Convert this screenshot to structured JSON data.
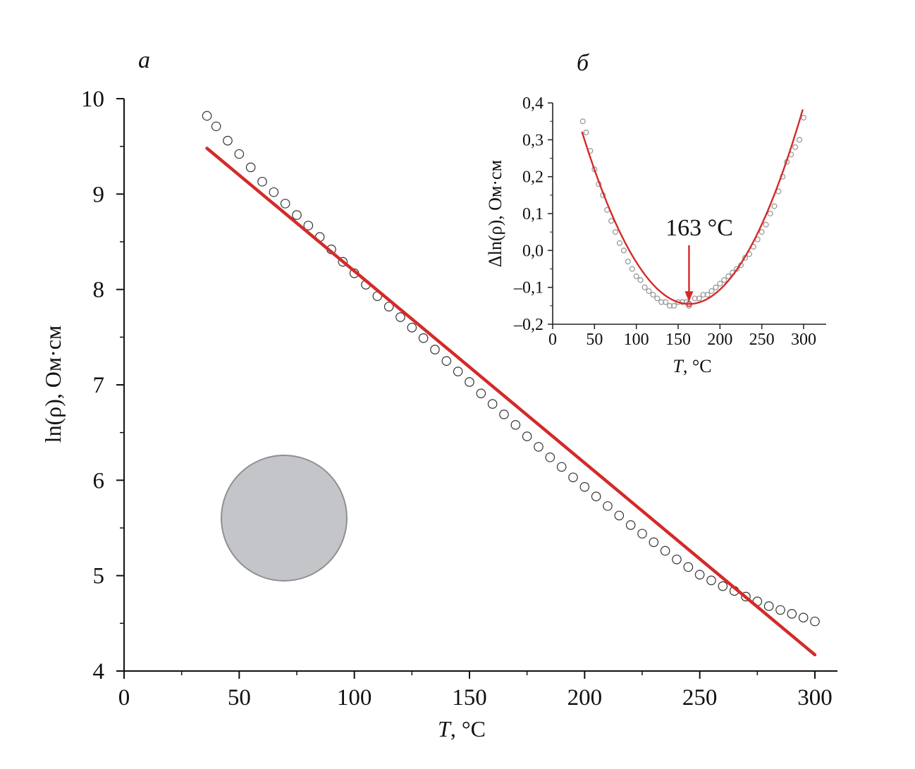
{
  "colors": {
    "fit_line": "#d42a2a",
    "markers_main": "#333333",
    "markers_inset": "#9a9a9a",
    "sample_disk": "#c4c5c9"
  },
  "chart_data": [
    {
      "panel": "а",
      "type": "scatter",
      "xlabel_italic": "T",
      "xlabel_rest": ", °C",
      "ylabel": "ln(ρ), Ом·см",
      "xlim": [
        0,
        310
      ],
      "ylim": [
        4,
        10
      ],
      "x_ticks": [
        0,
        50,
        100,
        150,
        200,
        250,
        300
      ],
      "y_ticks": [
        4,
        5,
        6,
        7,
        8,
        9,
        10
      ],
      "series": [
        {
          "kind": "markers",
          "points": [
            [
              36,
              9.82
            ],
            [
              40,
              9.71
            ],
            [
              45,
              9.56
            ],
            [
              50,
              9.42
            ],
            [
              55,
              9.28
            ],
            [
              60,
              9.13
            ],
            [
              65,
              9.02
            ],
            [
              70,
              8.9
            ],
            [
              75,
              8.78
            ],
            [
              80,
              8.67
            ],
            [
              85,
              8.55
            ],
            [
              90,
              8.42
            ],
            [
              95,
              8.29
            ],
            [
              100,
              8.17
            ],
            [
              105,
              8.05
            ],
            [
              110,
              7.93
            ],
            [
              115,
              7.82
            ],
            [
              120,
              7.71
            ],
            [
              125,
              7.6
            ],
            [
              130,
              7.49
            ],
            [
              135,
              7.37
            ],
            [
              140,
              7.25
            ],
            [
              145,
              7.14
            ],
            [
              150,
              7.03
            ],
            [
              155,
              6.91
            ],
            [
              160,
              6.8
            ],
            [
              165,
              6.69
            ],
            [
              170,
              6.58
            ],
            [
              175,
              6.46
            ],
            [
              180,
              6.35
            ],
            [
              185,
              6.24
            ],
            [
              190,
              6.14
            ],
            [
              195,
              6.03
            ],
            [
              200,
              5.93
            ],
            [
              205,
              5.83
            ],
            [
              210,
              5.73
            ],
            [
              215,
              5.63
            ],
            [
              220,
              5.53
            ],
            [
              225,
              5.44
            ],
            [
              230,
              5.35
            ],
            [
              235,
              5.26
            ],
            [
              240,
              5.17
            ],
            [
              245,
              5.09
            ],
            [
              250,
              5.01
            ],
            [
              255,
              4.95
            ],
            [
              260,
              4.89
            ],
            [
              265,
              4.84
            ],
            [
              270,
              4.78
            ],
            [
              275,
              4.73
            ],
            [
              280,
              4.68
            ],
            [
              285,
              4.64
            ],
            [
              290,
              4.6
            ],
            [
              295,
              4.56
            ],
            [
              300,
              4.52
            ]
          ]
        },
        {
          "kind": "line",
          "points": [
            [
              36,
              9.48
            ],
            [
              300,
              4.17
            ]
          ]
        }
      ]
    },
    {
      "panel": "б",
      "type": "scatter",
      "xlabel_italic": "T",
      "xlabel_rest": ", °C",
      "ylabel": "Δln(ρ), Ом·см",
      "xlim": [
        0,
        310
      ],
      "ylim": [
        -0.2,
        0.4
      ],
      "x_ticks": [
        0,
        50,
        100,
        150,
        200,
        250,
        300
      ],
      "x_tick_labels": [
        "0",
        "50",
        "100",
        "150",
        "200",
        "250",
        "300"
      ],
      "y_ticks": [
        -0.2,
        -0.1,
        0.0,
        0.1,
        0.2,
        0.3,
        0.4
      ],
      "y_tick_labels": [
        "–0,2",
        "–0,1",
        "0,0",
        "0,1",
        "0,2",
        "0,3",
        "0,4"
      ],
      "annotation": {
        "text": "163 °C",
        "x": 163,
        "y": -0.145
      },
      "series": [
        {
          "kind": "markers",
          "points": [
            [
              36,
              0.35
            ],
            [
              40,
              0.32
            ],
            [
              45,
              0.27
            ],
            [
              50,
              0.22
            ],
            [
              55,
              0.18
            ],
            [
              60,
              0.15
            ],
            [
              65,
              0.11
            ],
            [
              70,
              0.08
            ],
            [
              75,
              0.05
            ],
            [
              80,
              0.02
            ],
            [
              85,
              0.0
            ],
            [
              90,
              -0.03
            ],
            [
              95,
              -0.05
            ],
            [
              100,
              -0.07
            ],
            [
              105,
              -0.08
            ],
            [
              110,
              -0.1
            ],
            [
              115,
              -0.11
            ],
            [
              120,
              -0.12
            ],
            [
              125,
              -0.13
            ],
            [
              130,
              -0.14
            ],
            [
              135,
              -0.14
            ],
            [
              140,
              -0.15
            ],
            [
              145,
              -0.15
            ],
            [
              150,
              -0.14
            ],
            [
              155,
              -0.14
            ],
            [
              160,
              -0.14
            ],
            [
              163,
              -0.15
            ],
            [
              170,
              -0.13
            ],
            [
              175,
              -0.13
            ],
            [
              180,
              -0.12
            ],
            [
              185,
              -0.12
            ],
            [
              190,
              -0.11
            ],
            [
              195,
              -0.1
            ],
            [
              200,
              -0.09
            ],
            [
              205,
              -0.08
            ],
            [
              210,
              -0.07
            ],
            [
              215,
              -0.06
            ],
            [
              220,
              -0.05
            ],
            [
              225,
              -0.04
            ],
            [
              230,
              -0.02
            ],
            [
              235,
              -0.01
            ],
            [
              240,
              0.01
            ],
            [
              245,
              0.03
            ],
            [
              250,
              0.05
            ],
            [
              255,
              0.07
            ],
            [
              260,
              0.1
            ],
            [
              265,
              0.12
            ],
            [
              270,
              0.16
            ],
            [
              275,
              0.2
            ],
            [
              280,
              0.24
            ],
            [
              285,
              0.26
            ],
            [
              290,
              0.28
            ],
            [
              295,
              0.3
            ],
            [
              300,
              0.36
            ]
          ]
        },
        {
          "kind": "fit-curve",
          "vertex": [
            163,
            -0.145
          ],
          "coef": 2.85e-05,
          "x_range": [
            35,
            300
          ]
        }
      ]
    }
  ]
}
